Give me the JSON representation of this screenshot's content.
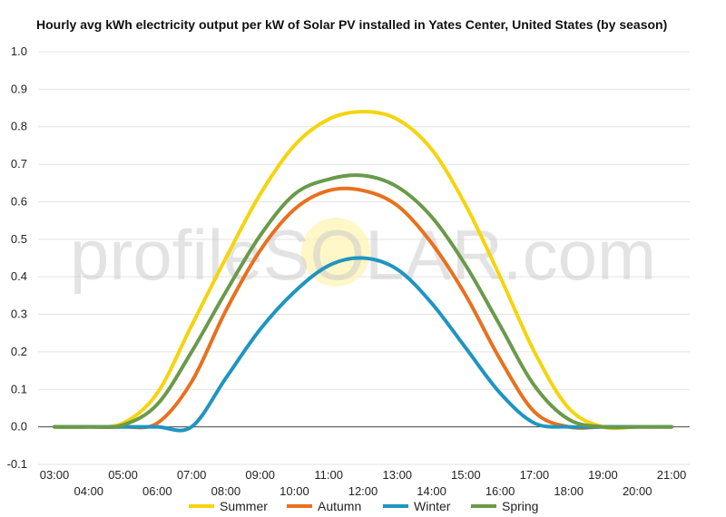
{
  "chart_data": {
    "type": "line",
    "title": "Hourly avg kWh electricity output per kW of Solar PV installed in Yates Center, United States (by season)",
    "xlabel": "",
    "ylabel": "",
    "x": [
      "03:00",
      "04:00",
      "05:00",
      "06:00",
      "07:00",
      "08:00",
      "09:00",
      "10:00",
      "11:00",
      "12:00",
      "13:00",
      "14:00",
      "15:00",
      "16:00",
      "17:00",
      "18:00",
      "19:00",
      "20:00",
      "21:00"
    ],
    "ylim": [
      -0.1,
      1.0
    ],
    "yticks": [
      "-0.1",
      "0.0",
      "0.1",
      "0.2",
      "0.3",
      "0.4",
      "0.5",
      "0.6",
      "0.7",
      "0.8",
      "0.9",
      "1.0"
    ],
    "grid": true,
    "legend": "bottom",
    "watermark": "profileSOLAR.com",
    "series": [
      {
        "name": "Summer",
        "color": "#f5d40f",
        "values": [
          0,
          0,
          0.01,
          0.09,
          0.27,
          0.45,
          0.62,
          0.75,
          0.82,
          0.84,
          0.82,
          0.74,
          0.59,
          0.4,
          0.2,
          0.05,
          0.0,
          0.0,
          0.0
        ]
      },
      {
        "name": "Autumn",
        "color": "#e8711f",
        "values": [
          0,
          0,
          0,
          0.01,
          0.12,
          0.31,
          0.47,
          0.58,
          0.63,
          0.63,
          0.59,
          0.49,
          0.35,
          0.18,
          0.04,
          0.0,
          0.0,
          0.0,
          0.0
        ]
      },
      {
        "name": "Winter",
        "color": "#1f95c1",
        "values": [
          0,
          0,
          0,
          0,
          0,
          0.13,
          0.26,
          0.36,
          0.43,
          0.45,
          0.42,
          0.33,
          0.21,
          0.09,
          0.01,
          0.0,
          0.0,
          0.0,
          0.0
        ]
      },
      {
        "name": "Spring",
        "color": "#6a9a4a",
        "values": [
          0,
          0,
          0.005,
          0.06,
          0.2,
          0.36,
          0.51,
          0.62,
          0.66,
          0.67,
          0.64,
          0.56,
          0.43,
          0.27,
          0.11,
          0.02,
          0.0,
          0.0,
          0.0
        ]
      }
    ]
  }
}
